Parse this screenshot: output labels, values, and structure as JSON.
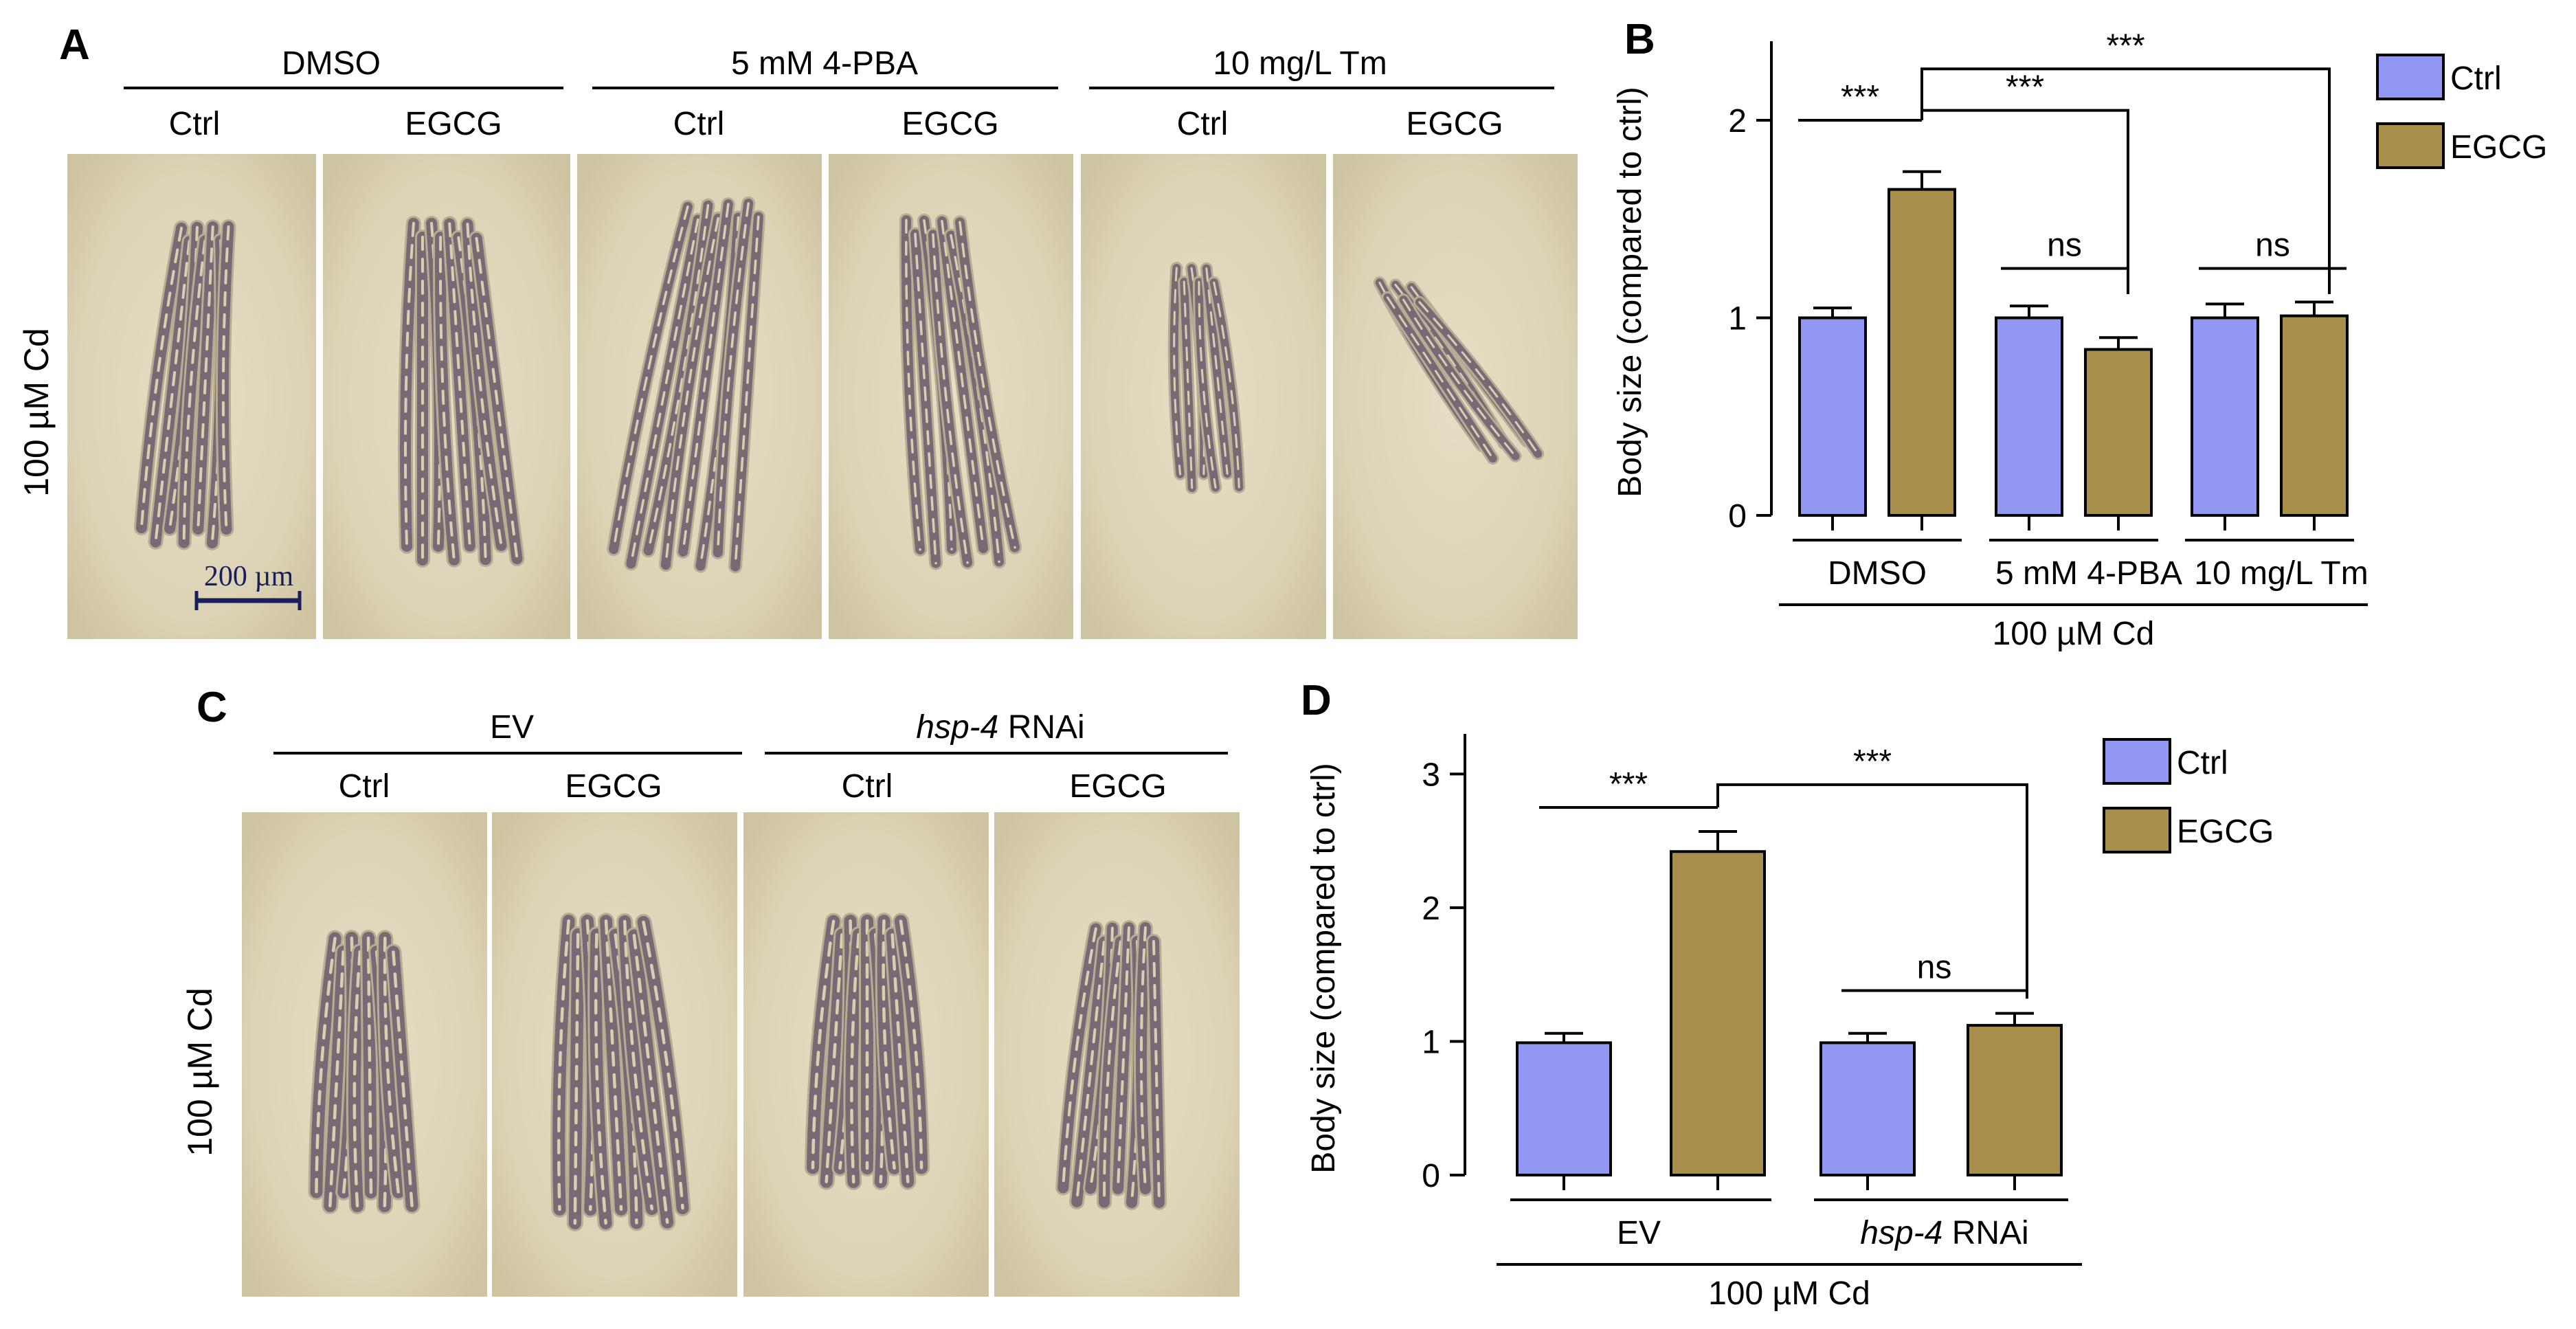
{
  "colors": {
    "ctrl": "#9197f3",
    "egcg": "#a8904c",
    "photo_bg": "#dcd3b6",
    "worm": "#6b5e70",
    "scale_bar": "#1a1f5c"
  },
  "panelA": {
    "letter": "A",
    "row_label": "100 µM Cd",
    "groups": [
      "DMSO",
      "5 mM 4-PBA",
      "10 mg/L Tm"
    ],
    "columns": [
      "Ctrl",
      "EGCG",
      "Ctrl",
      "EGCG",
      "Ctrl",
      "EGCG"
    ],
    "scale_bar": "200 µm"
  },
  "panelC": {
    "letter": "C",
    "row_label": "100 µM Cd",
    "groups": [
      {
        "italic": "",
        "rest": "EV"
      },
      {
        "italic": "hsp-4",
        "rest": " RNAi"
      }
    ],
    "columns": [
      "Ctrl",
      "EGCG",
      "Ctrl",
      "EGCG"
    ]
  },
  "chart_data": [
    {
      "panel": "B",
      "type": "bar",
      "ylabel": "Body size (compared to ctrl)",
      "ylim": [
        0,
        2.4
      ],
      "yticks": [
        0,
        1,
        2
      ],
      "categories": [
        "DMSO",
        "5 mM 4-PBA",
        "10 mg/L Tm"
      ],
      "category_italic": [
        "",
        "",
        ""
      ],
      "category_rest": [
        "DMSO",
        "5 mM 4-PBA",
        "10 mg/L Tm"
      ],
      "group_label": "100 µM Cd",
      "series": [
        {
          "name": "Ctrl",
          "values": [
            1.0,
            1.0,
            1.0
          ],
          "errors": [
            0.05,
            0.06,
            0.07
          ]
        },
        {
          "name": "EGCG",
          "values": [
            1.65,
            0.84,
            1.01
          ],
          "errors": [
            0.09,
            0.06,
            0.07
          ]
        }
      ],
      "legend": "top-right",
      "significance": [
        {
          "label": "***",
          "from": "DMSO Ctrl",
          "to": "DMSO EGCG"
        },
        {
          "label": "***",
          "from": "DMSO EGCG",
          "to": "5 mM 4-PBA EGCG"
        },
        {
          "label": "***",
          "from": "DMSO EGCG",
          "to": "10 mg/L Tm EGCG"
        },
        {
          "label": "ns",
          "from": "5 mM 4-PBA Ctrl",
          "to": "5 mM 4-PBA EGCG"
        },
        {
          "label": "ns",
          "from": "10 mg/L Tm Ctrl",
          "to": "10 mg/L Tm EGCG"
        }
      ]
    },
    {
      "panel": "D",
      "type": "bar",
      "ylabel": "Body size (compared to ctrl)",
      "ylim": [
        0,
        3.3
      ],
      "yticks": [
        0,
        1,
        2,
        3
      ],
      "categories": [
        "EV",
        "hsp-4 RNAi"
      ],
      "category_italic": [
        "",
        "hsp-4"
      ],
      "category_rest": [
        "EV",
        " RNAi"
      ],
      "group_label": "100 µM Cd",
      "series": [
        {
          "name": "Ctrl",
          "values": [
            0.99,
            0.99
          ],
          "errors": [
            0.07,
            0.07
          ]
        },
        {
          "name": "EGCG",
          "values": [
            2.42,
            1.12
          ],
          "errors": [
            0.15,
            0.09
          ]
        }
      ],
      "legend": "top-right",
      "significance": [
        {
          "label": "***",
          "from": "EV Ctrl",
          "to": "EV EGCG"
        },
        {
          "label": "***",
          "from": "EV EGCG",
          "to": "hsp-4 RNAi EGCG"
        },
        {
          "label": "ns",
          "from": "hsp-4 RNAi Ctrl",
          "to": "hsp-4 RNAi EGCG"
        }
      ]
    }
  ]
}
